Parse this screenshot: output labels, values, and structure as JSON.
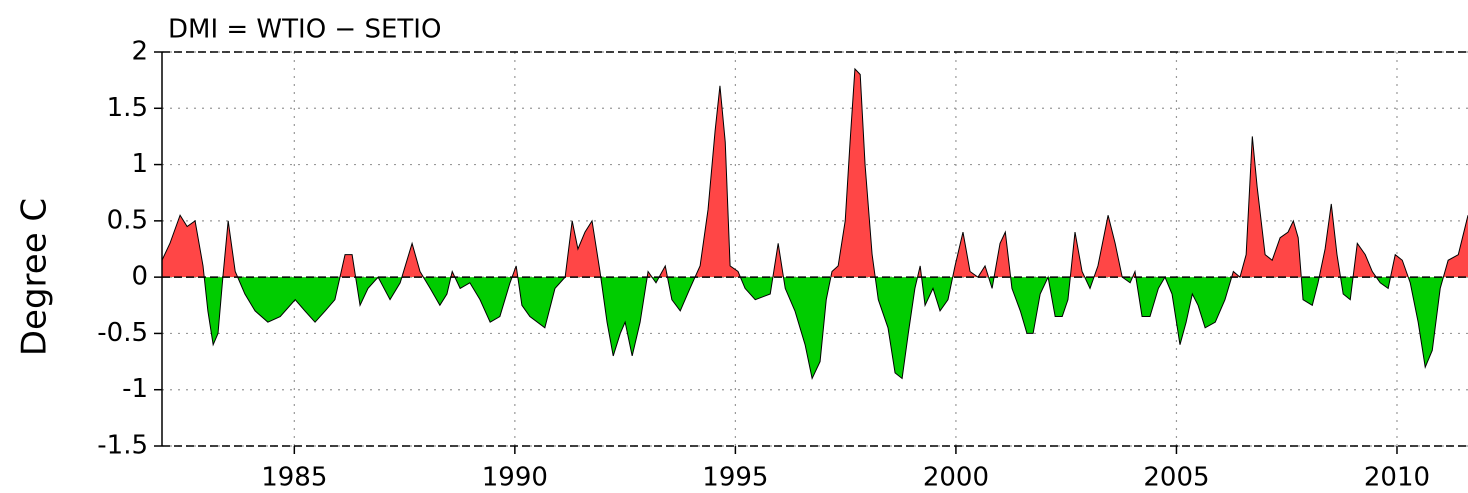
{
  "chart_data": {
    "type": "area",
    "title": "DMI = WTIO − SETIO",
    "y_label": "Degree C",
    "positive_color": "#ff4646",
    "negative_color": "#00cc00",
    "grid": true,
    "xlim": [
      1982,
      2011.61
    ],
    "ylim": [
      -1.5,
      2
    ],
    "xticks": [
      1985,
      1990,
      1995,
      2000,
      2005,
      2010
    ],
    "yticks": [
      -1.5,
      -1,
      -0.5,
      0,
      0.5,
      1,
      1.5,
      2
    ],
    "x": [
      1982.0,
      1982.18,
      1982.41,
      1982.57,
      1982.75,
      1982.93,
      1983.04,
      1983.16,
      1983.27,
      1983.38,
      1983.5,
      1983.66,
      1983.88,
      1984.11,
      1984.4,
      1984.68,
      1985.02,
      1985.24,
      1985.47,
      1985.7,
      1985.92,
      1986.15,
      1986.31,
      1986.49,
      1986.67,
      1986.9,
      1987.17,
      1987.4,
      1987.67,
      1987.85,
      1988.08,
      1988.3,
      1988.46,
      1988.58,
      1988.76,
      1988.98,
      1989.21,
      1989.44,
      1989.66,
      1989.89,
      1990.03,
      1990.16,
      1990.34,
      1990.68,
      1990.91,
      1991.14,
      1991.3,
      1991.43,
      1991.59,
      1991.75,
      1991.93,
      1992.09,
      1992.23,
      1992.39,
      1992.5,
      1992.66,
      1992.84,
      1993.02,
      1993.2,
      1993.41,
      1993.56,
      1993.75,
      1993.97,
      1994.2,
      1994.38,
      1994.54,
      1994.65,
      1994.77,
      1994.88,
      1995.06,
      1995.22,
      1995.45,
      1995.79,
      1995.97,
      1996.13,
      1996.35,
      1996.58,
      1996.74,
      1996.92,
      1997.06,
      1997.19,
      1997.33,
      1997.49,
      1997.6,
      1997.71,
      1997.83,
      1997.94,
      1998.1,
      1998.24,
      1998.46,
      1998.62,
      1998.78,
      1998.92,
      1999.07,
      1999.19,
      1999.3,
      1999.48,
      1999.64,
      1999.82,
      1999.98,
      2000.16,
      2000.32,
      2000.5,
      2000.66,
      2000.82,
      2001.0,
      2001.12,
      2001.27,
      2001.46,
      2001.61,
      2001.75,
      2001.91,
      2002.09,
      2002.25,
      2002.41,
      2002.54,
      2002.7,
      2002.86,
      2003.04,
      2003.22,
      2003.45,
      2003.61,
      2003.77,
      2003.95,
      2004.06,
      2004.22,
      2004.4,
      2004.59,
      2004.74,
      2004.9,
      2005.08,
      2005.22,
      2005.36,
      2005.49,
      2005.65,
      2005.88,
      2006.1,
      2006.29,
      2006.44,
      2006.58,
      2006.72,
      2006.83,
      2007.01,
      2007.17,
      2007.35,
      2007.53,
      2007.65,
      2007.76,
      2007.87,
      2008.08,
      2008.21,
      2008.37,
      2008.51,
      2008.64,
      2008.78,
      2008.94,
      2009.1,
      2009.28,
      2009.44,
      2009.62,
      2009.8,
      2009.96,
      2010.12,
      2010.3,
      2010.48,
      2010.64,
      2010.8,
      2010.98,
      2011.16,
      2011.39,
      2011.61
    ],
    "values": [
      0.15,
      0.3,
      0.55,
      0.45,
      0.5,
      0.1,
      -0.3,
      -0.6,
      -0.5,
      0.0,
      0.5,
      0.05,
      -0.15,
      -0.3,
      -0.4,
      -0.35,
      -0.2,
      -0.3,
      -0.4,
      -0.3,
      -0.2,
      0.2,
      0.2,
      -0.25,
      -0.1,
      0.0,
      -0.2,
      -0.05,
      0.3,
      0.05,
      -0.1,
      -0.25,
      -0.15,
      0.05,
      -0.1,
      -0.05,
      -0.2,
      -0.4,
      -0.35,
      -0.05,
      0.1,
      -0.25,
      -0.35,
      -0.45,
      -0.1,
      0.0,
      0.5,
      0.25,
      0.4,
      0.5,
      0.05,
      -0.4,
      -0.7,
      -0.5,
      -0.4,
      -0.7,
      -0.4,
      0.05,
      -0.05,
      0.1,
      -0.2,
      -0.3,
      -0.1,
      0.1,
      0.6,
      1.3,
      1.7,
      1.2,
      0.1,
      0.05,
      -0.1,
      -0.2,
      -0.15,
      0.3,
      -0.1,
      -0.3,
      -0.6,
      -0.9,
      -0.75,
      -0.2,
      0.05,
      0.1,
      0.5,
      1.2,
      1.85,
      1.8,
      1.0,
      0.2,
      -0.2,
      -0.45,
      -0.85,
      -0.9,
      -0.5,
      -0.1,
      0.1,
      -0.25,
      -0.1,
      -0.3,
      -0.2,
      0.1,
      0.4,
      0.05,
      0.0,
      0.1,
      -0.1,
      0.3,
      0.4,
      -0.1,
      -0.3,
      -0.5,
      -0.5,
      -0.15,
      0.0,
      -0.35,
      -0.35,
      -0.2,
      0.4,
      0.05,
      -0.1,
      0.1,
      0.55,
      0.3,
      0.0,
      -0.05,
      0.05,
      -0.35,
      -0.35,
      -0.1,
      0.0,
      -0.15,
      -0.6,
      -0.4,
      -0.15,
      -0.25,
      -0.45,
      -0.4,
      -0.2,
      0.05,
      0.0,
      0.2,
      1.25,
      0.8,
      0.2,
      0.15,
      0.35,
      0.4,
      0.5,
      0.35,
      -0.2,
      -0.25,
      -0.05,
      0.25,
      0.65,
      0.2,
      -0.15,
      -0.2,
      0.3,
      0.2,
      0.05,
      -0.05,
      -0.1,
      0.2,
      0.15,
      -0.05,
      -0.4,
      -0.8,
      -0.65,
      -0.1,
      0.15,
      0.2,
      0.55
    ]
  }
}
